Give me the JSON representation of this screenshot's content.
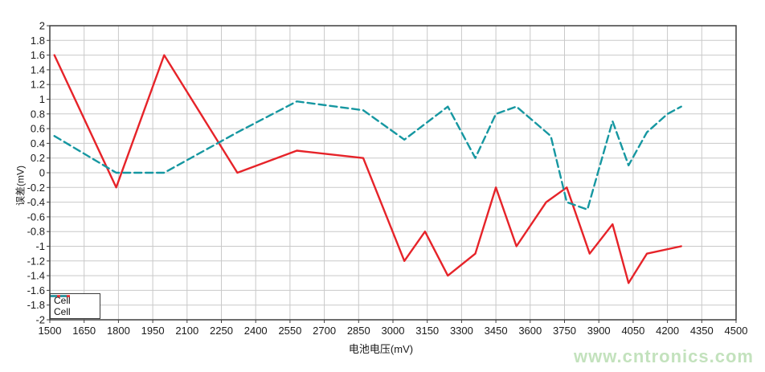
{
  "chart_data": {
    "type": "line",
    "title": "",
    "xlabel": "电池电压(mV)",
    "ylabel": "误差(mV)",
    "xlim": [
      1500,
      4500
    ],
    "ylim": [
      -2,
      2
    ],
    "grid": true,
    "legend_position": "bottom-left",
    "x_ticks": [
      "1500",
      "1650",
      "1800",
      "1950",
      "2100",
      "2250",
      "2400",
      "2550",
      "2700",
      "2850",
      "3000",
      "3150",
      "3300",
      "3450",
      "3600",
      "3750",
      "3900",
      "4050",
      "4200",
      "4350",
      "4500"
    ],
    "y_ticks": [
      "2",
      "1.8",
      "1.6",
      "1.4",
      "1.2",
      "1",
      "0.8",
      "0.6",
      "0.4",
      "0.2",
      "0",
      "-0.2",
      "-0.4",
      "-0.6",
      "-0.8",
      "-1",
      "-1.2",
      "-1.4",
      "-1.6",
      "-1.8",
      "-2"
    ],
    "series": [
      {
        "name": "Cell",
        "color": "#e62329",
        "style": "solid",
        "points": [
          [
            1520,
            1.6
          ],
          [
            1790,
            -0.2
          ],
          [
            2000,
            1.6
          ],
          [
            2320,
            0
          ],
          [
            2580,
            0.3
          ],
          [
            2870,
            0.2
          ],
          [
            3050,
            -1.2
          ],
          [
            3140,
            -0.8
          ],
          [
            3240,
            -1.4
          ],
          [
            3360,
            -1.1
          ],
          [
            3450,
            -0.2
          ],
          [
            3540,
            -1.0
          ],
          [
            3670,
            -0.4
          ],
          [
            3760,
            -0.2
          ],
          [
            3860,
            -1.1
          ],
          [
            3960,
            -0.7
          ],
          [
            4030,
            -1.5
          ],
          [
            4110,
            -1.1
          ],
          [
            4260,
            -1.0
          ]
        ]
      },
      {
        "name": "Cell",
        "color": "#1697a1",
        "style": "dashed",
        "points": [
          [
            1520,
            0.5
          ],
          [
            1790,
            0
          ],
          [
            2000,
            0
          ],
          [
            2320,
            0.55
          ],
          [
            2580,
            0.97
          ],
          [
            2870,
            0.85
          ],
          [
            3050,
            0.45
          ],
          [
            3240,
            0.9
          ],
          [
            3360,
            0.2
          ],
          [
            3450,
            0.8
          ],
          [
            3540,
            0.9
          ],
          [
            3690,
            0.5
          ],
          [
            3760,
            -0.4
          ],
          [
            3850,
            -0.5
          ],
          [
            3960,
            0.7
          ],
          [
            4030,
            0.1
          ],
          [
            4110,
            0.55
          ],
          [
            4200,
            0.8
          ],
          [
            4260,
            0.9
          ]
        ]
      }
    ]
  },
  "axes": {
    "x_title": "电池电压(mV)",
    "y_title": "误差(mV)"
  },
  "watermark": {
    "text": "www.cntronics.com",
    "color": "#c3e2bd"
  },
  "colors": {
    "background": "#ffffff",
    "grid": "#c9c9c9",
    "border": "#3f3f3f",
    "tick_text": "#1a1a1a"
  }
}
